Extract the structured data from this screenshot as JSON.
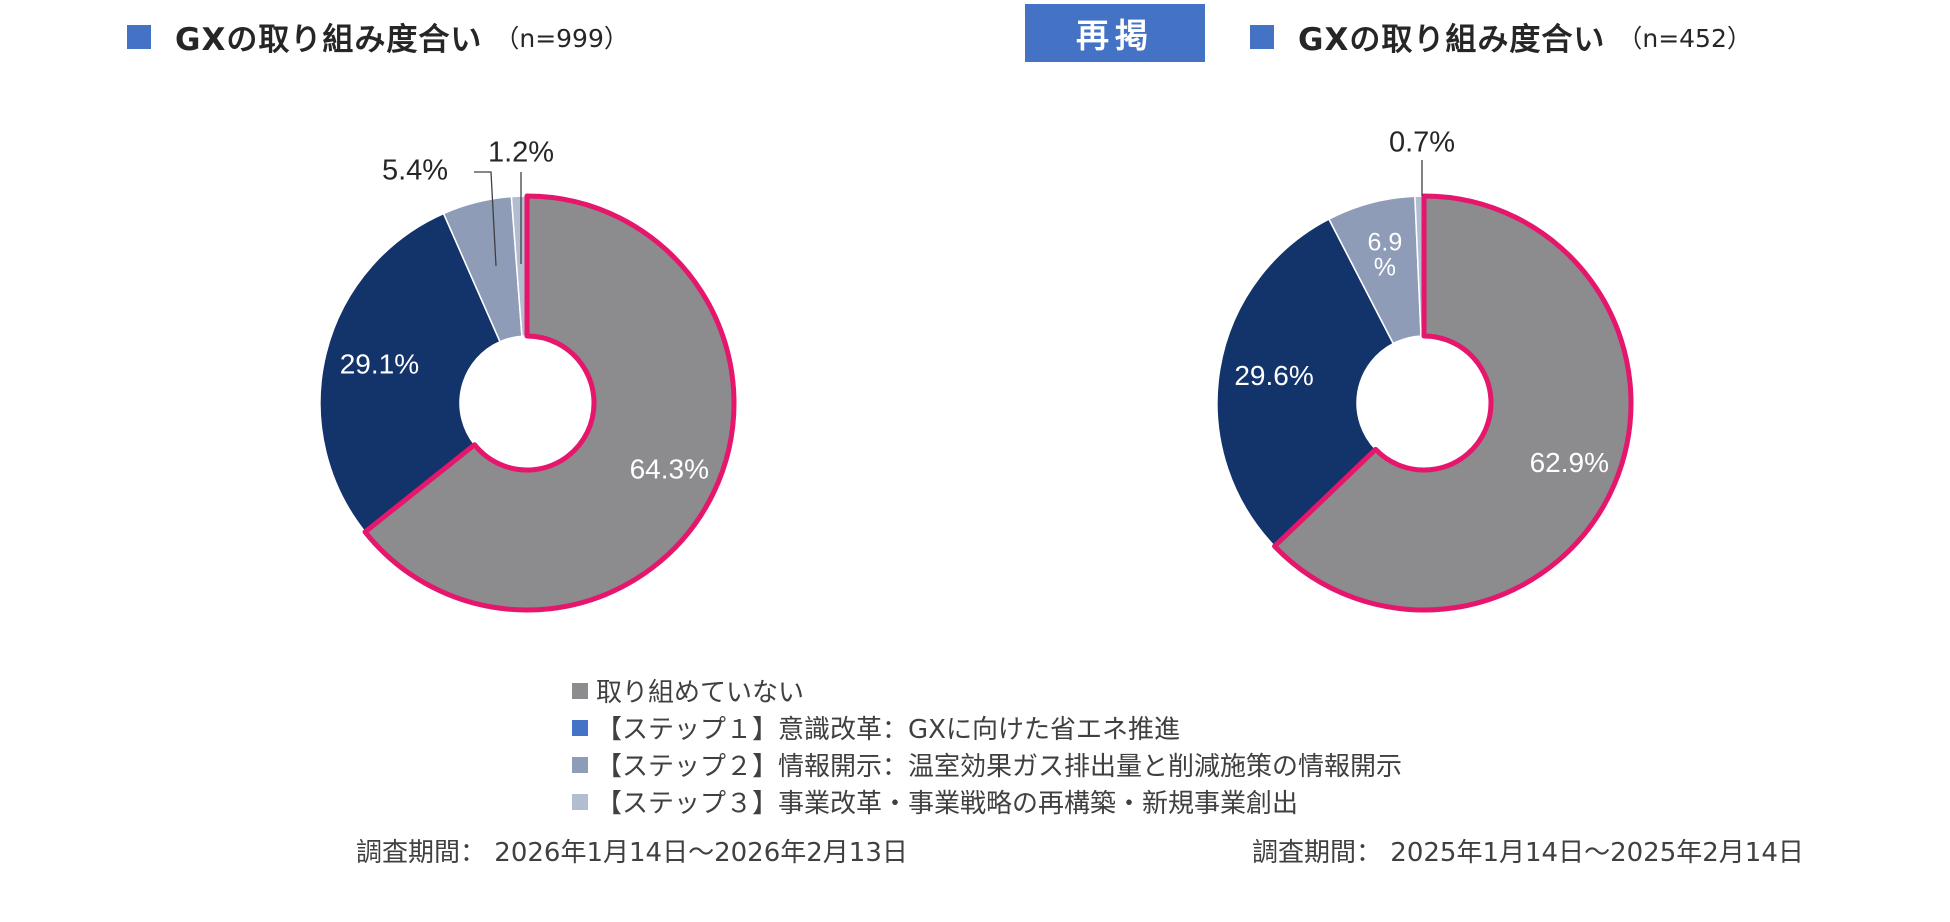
{
  "panels": [
    {
      "title": "GXの取り組み度合い",
      "n_label": "（n=999）",
      "period_label": "調査期間：",
      "period_value": "2026年1月14日～2026年2月13日"
    },
    {
      "title": "GXの取り組み度合い",
      "n_label": "（n=452）",
      "period_label": "調査期間：",
      "period_value": "2025年1月14日～2025年2月14日"
    }
  ],
  "badge": {
    "label": "再掲"
  },
  "legend": [
    {
      "label": "取り組めていない",
      "color": "#8c8b8d"
    },
    {
      "label": "【ステップ１】意識改革：GXに向けた省エネ推進",
      "color": "#4472c4"
    },
    {
      "label": "【ステップ２】情報開示：温室効果ガス排出量と削減施策の情報開示",
      "color": "#8e9cb7"
    },
    {
      "label": "【ステップ３】事業改革・事業戦略の再構築・新規事業創出",
      "color": "#b2bdd2"
    }
  ],
  "colors": {
    "not_engaged": "#8c8b8d",
    "step1": "#13336b",
    "step2": "#8e9cb7",
    "step3": "#b2bdd2",
    "highlight": "#e5166c",
    "title_marker": "#4472c4"
  },
  "chart_data": [
    {
      "type": "pie",
      "title": "GXの取り組み度合い",
      "subtitle": "（n=999）",
      "categories": [
        "取り組めていない",
        "【ステップ１】意識改革：GXに向けた省エネ推進",
        "【ステップ２】情報開示：温室効果ガス排出量と削減施策の情報開示",
        "【ステップ３】事業改革・事業戦略の再構築・新規事業創出"
      ],
      "values": [
        64.3,
        29.1,
        5.4,
        1.2
      ],
      "labels": [
        "64.3%",
        "29.1%",
        "5.4%",
        "1.2%"
      ],
      "highlighted": "取り組めていない"
    },
    {
      "type": "pie",
      "title": "GXの取り組み度合い",
      "subtitle": "（n=452）",
      "categories": [
        "取り組めていない",
        "【ステップ１】意識改革：GXに向けた省エネ推進",
        "【ステップ２】情報開示：温室効果ガス排出量と削減施策の情報開示",
        "【ステップ３】事業改革・事業戦略の再構築・新規事業創出"
      ],
      "values": [
        62.9,
        29.6,
        6.9,
        0.7
      ],
      "labels": [
        "62.9%",
        "29.6%",
        "6.9\n%",
        "0.7%"
      ],
      "highlighted": "取り組めていない"
    }
  ]
}
